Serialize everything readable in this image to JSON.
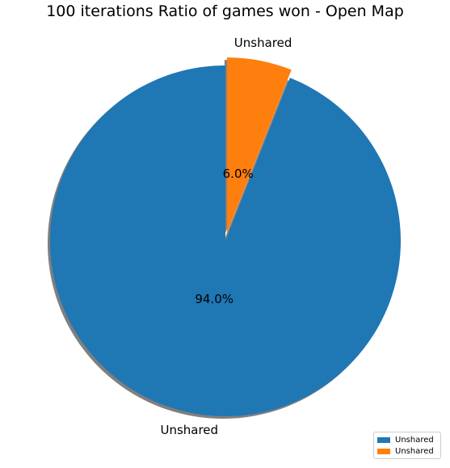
{
  "chart_data": {
    "type": "pie",
    "title": "100 iterations Ratio of games won - Open Map",
    "slices": [
      {
        "label": "Unshared",
        "value": 94.0,
        "value_label": "94.0%",
        "color": "#1f77b4",
        "exploded": false
      },
      {
        "label": "Unshared",
        "value": 6.0,
        "value_label": "6.0%",
        "color": "#ff7f0e",
        "exploded": true
      }
    ],
    "shadow": true,
    "start_angle_deg": 90,
    "direction": "counterclockwise",
    "legend": {
      "position": "lower-right",
      "entries": [
        {
          "label": "Unshared",
          "color": "#1f77b4"
        },
        {
          "label": "Unshared",
          "color": "#ff7f0e"
        }
      ]
    }
  }
}
